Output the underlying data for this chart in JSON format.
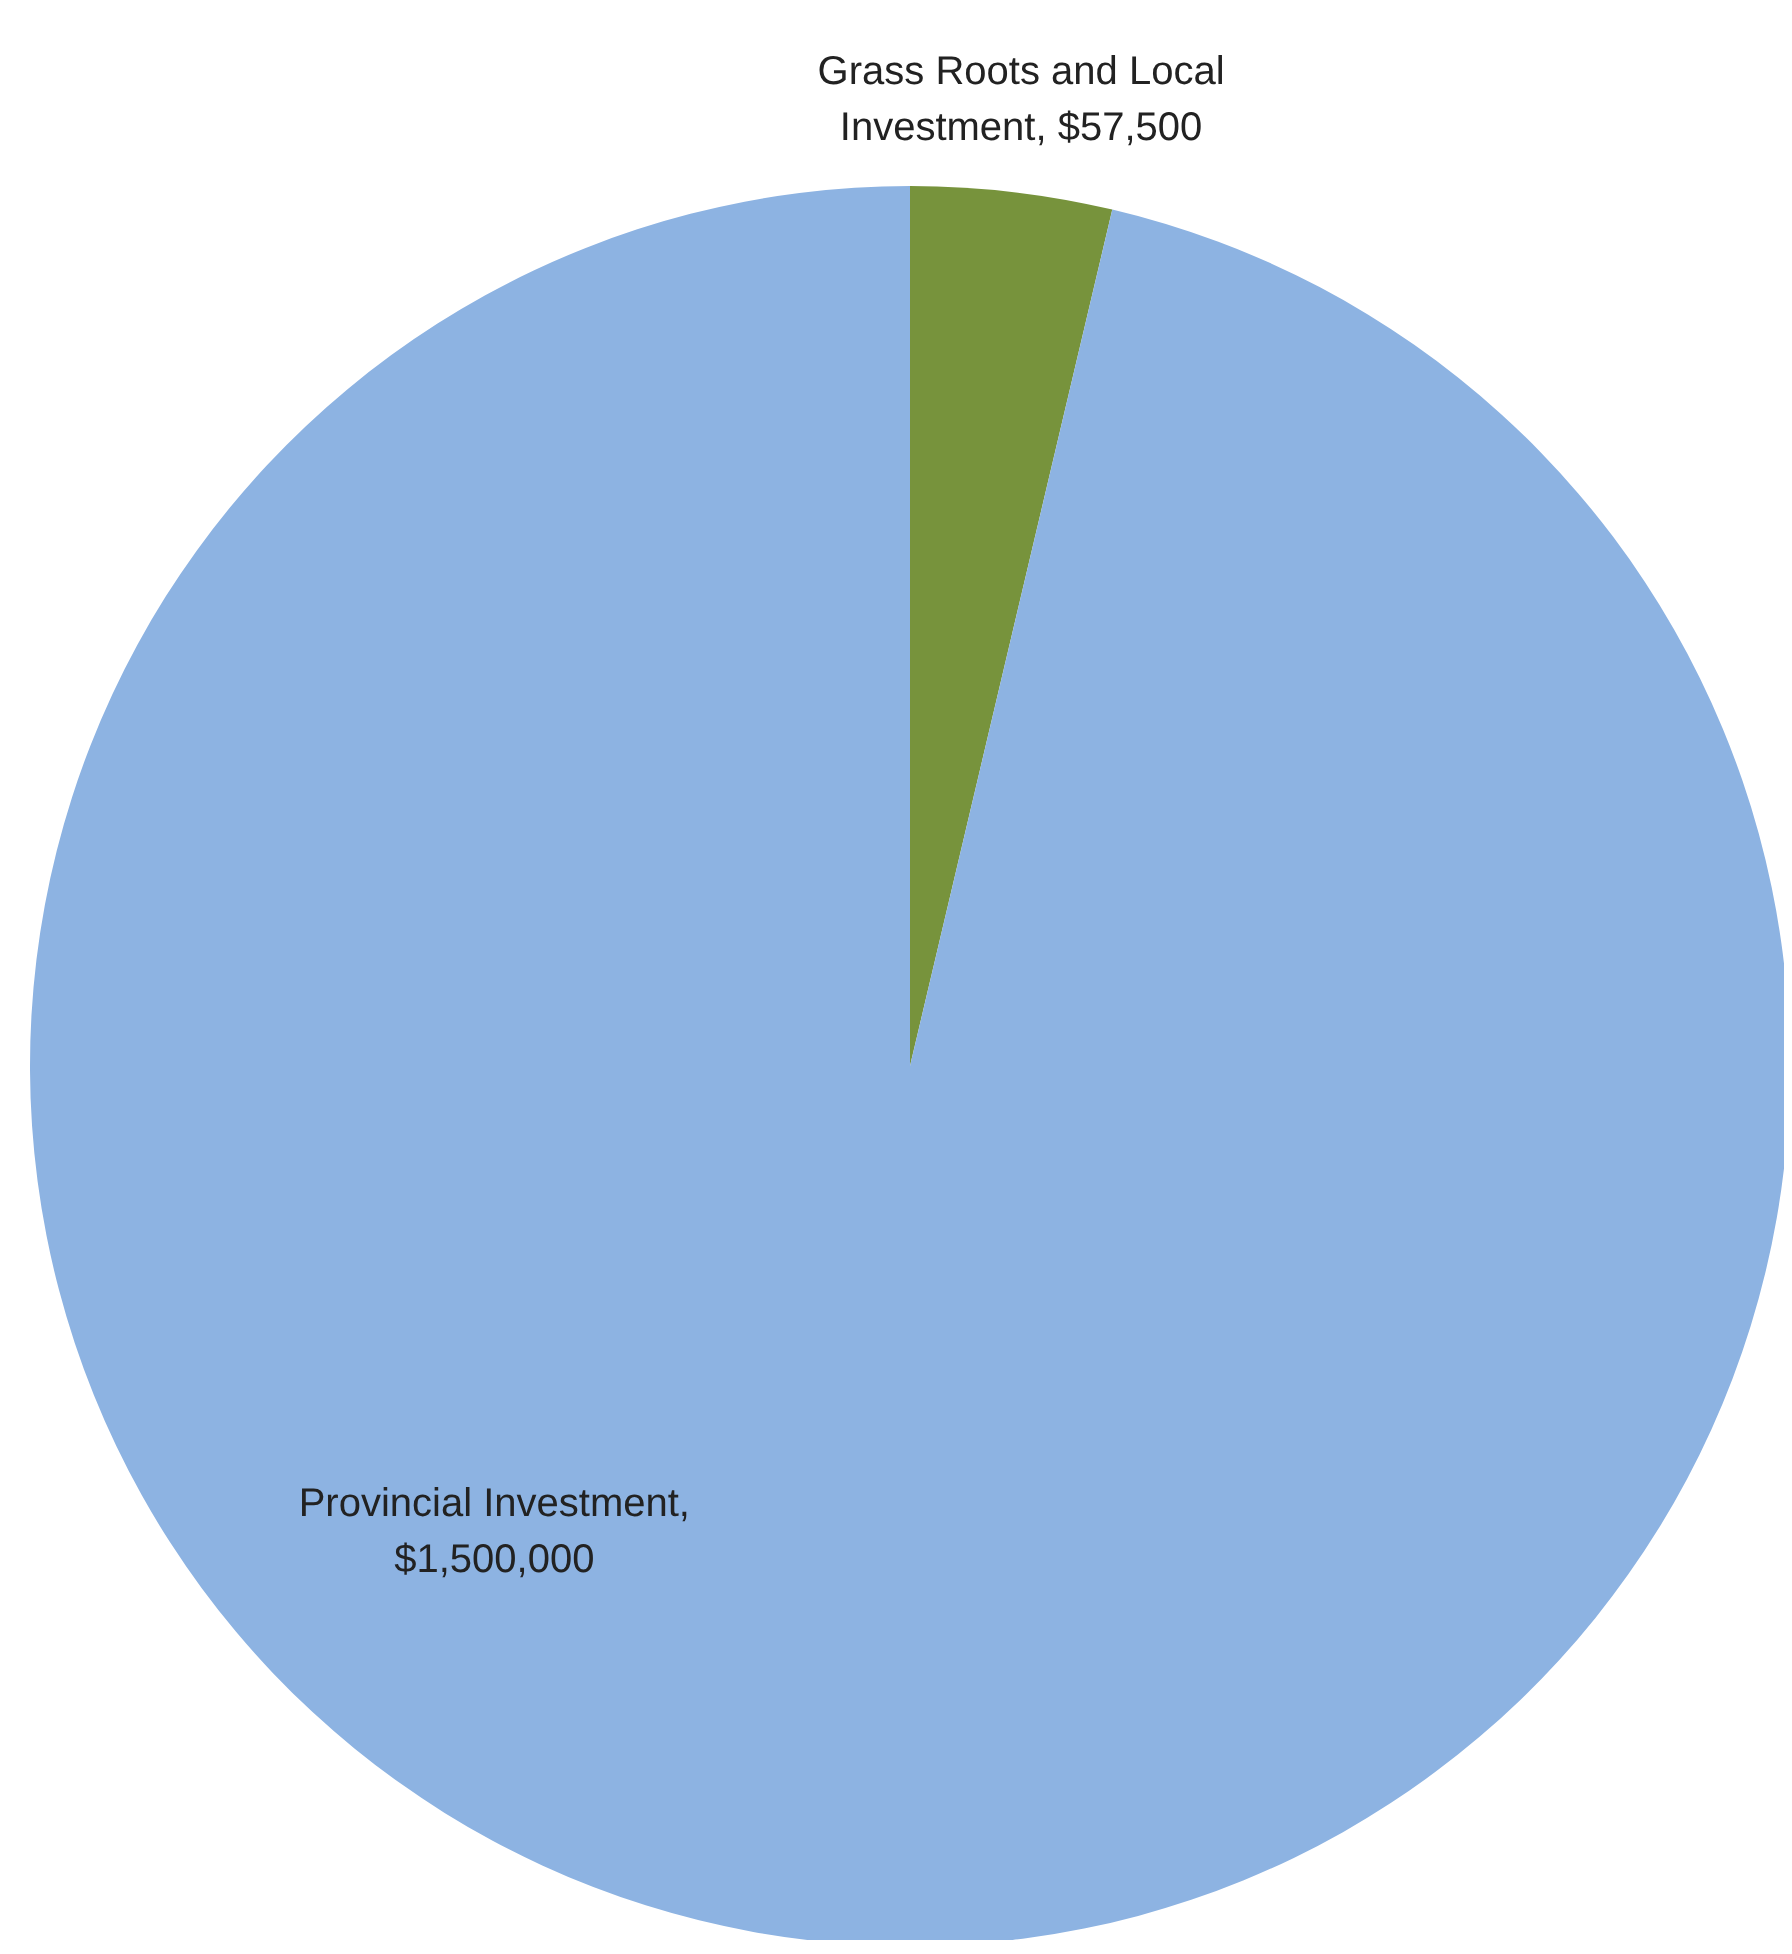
{
  "chart_data": {
    "type": "pie",
    "categories": [
      "Grass Roots and Local Investment",
      "Provincial Investment"
    ],
    "values": [
      57500,
      1500000
    ],
    "value_labels": [
      ", $57,500",
      ", $1,500,000"
    ],
    "colors": [
      "#77933c",
      "#8db3e2"
    ]
  }
}
